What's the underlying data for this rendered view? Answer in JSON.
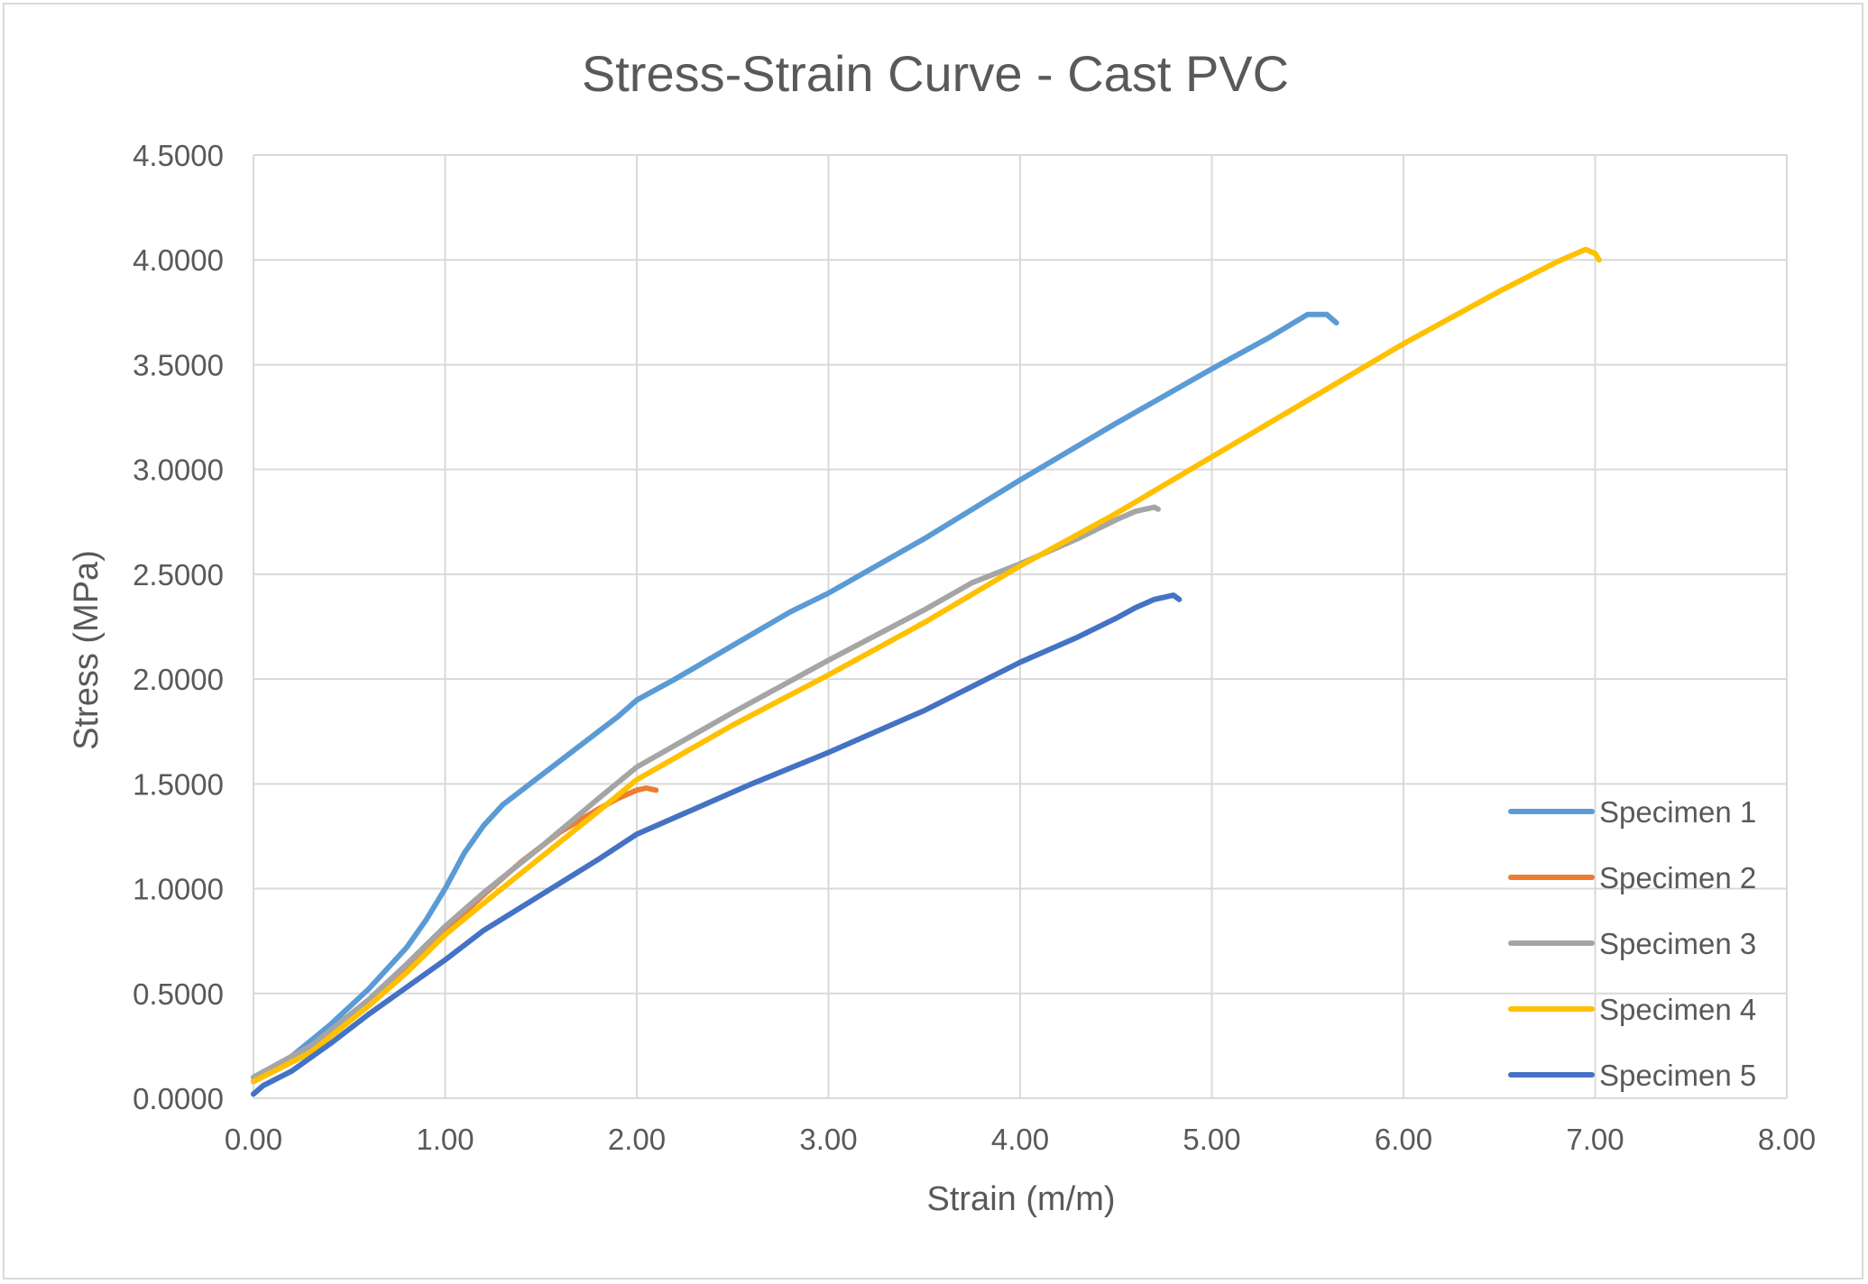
{
  "chart_data": {
    "type": "line",
    "title": "Stress-Strain Curve - Cast PVC",
    "xlabel": "Strain (m/m)",
    "ylabel": "Stress (MPa)",
    "xlim": [
      0,
      8
    ],
    "ylim": [
      0,
      4.5
    ],
    "x_ticks": [
      "0.00",
      "1.00",
      "2.00",
      "3.00",
      "4.00",
      "5.00",
      "6.00",
      "7.00",
      "8.00"
    ],
    "y_ticks": [
      "0.0000",
      "0.5000",
      "1.0000",
      "1.5000",
      "2.0000",
      "2.5000",
      "3.0000",
      "3.5000",
      "4.0000",
      "4.5000"
    ],
    "grid": true,
    "legend_position": "bottom-right",
    "series": [
      {
        "name": "Specimen 1",
        "color": "#5b9bd5",
        "points": [
          [
            0,
            0.1
          ],
          [
            0.2,
            0.2
          ],
          [
            0.4,
            0.35
          ],
          [
            0.6,
            0.52
          ],
          [
            0.8,
            0.72
          ],
          [
            0.9,
            0.85
          ],
          [
            1.0,
            1.0
          ],
          [
            1.1,
            1.17
          ],
          [
            1.2,
            1.3
          ],
          [
            1.3,
            1.4
          ],
          [
            1.5,
            1.54
          ],
          [
            1.7,
            1.68
          ],
          [
            1.9,
            1.82
          ],
          [
            2.0,
            1.9
          ],
          [
            2.2,
            2.0
          ],
          [
            2.5,
            2.16
          ],
          [
            2.8,
            2.32
          ],
          [
            3.0,
            2.41
          ],
          [
            3.5,
            2.67
          ],
          [
            4.0,
            2.95
          ],
          [
            4.5,
            3.22
          ],
          [
            5.0,
            3.48
          ],
          [
            5.3,
            3.63
          ],
          [
            5.5,
            3.74
          ],
          [
            5.6,
            3.74
          ],
          [
            5.65,
            3.7
          ]
        ]
      },
      {
        "name": "Specimen 2",
        "color": "#ed7d31",
        "points": [
          [
            0,
            0.08
          ],
          [
            0.3,
            0.22
          ],
          [
            0.6,
            0.45
          ],
          [
            0.8,
            0.63
          ],
          [
            1.0,
            0.8
          ],
          [
            1.2,
            0.97
          ],
          [
            1.4,
            1.13
          ],
          [
            1.6,
            1.27
          ],
          [
            1.8,
            1.38
          ],
          [
            1.9,
            1.43
          ],
          [
            2.0,
            1.47
          ],
          [
            2.05,
            1.48
          ],
          [
            2.1,
            1.47
          ]
        ]
      },
      {
        "name": "Specimen 3",
        "color": "#a5a5a5",
        "points": [
          [
            0,
            0.1
          ],
          [
            0.3,
            0.25
          ],
          [
            0.6,
            0.47
          ],
          [
            0.8,
            0.64
          ],
          [
            1.0,
            0.82
          ],
          [
            1.2,
            0.98
          ],
          [
            1.5,
            1.2
          ],
          [
            1.8,
            1.43
          ],
          [
            2.0,
            1.58
          ],
          [
            2.5,
            1.84
          ],
          [
            3.0,
            2.09
          ],
          [
            3.5,
            2.33
          ],
          [
            3.75,
            2.46
          ],
          [
            4.0,
            2.55
          ],
          [
            4.3,
            2.67
          ],
          [
            4.5,
            2.76
          ],
          [
            4.6,
            2.8
          ],
          [
            4.7,
            2.82
          ],
          [
            4.72,
            2.81
          ]
        ]
      },
      {
        "name": "Specimen 4",
        "color": "#ffc000",
        "points": [
          [
            0,
            0.08
          ],
          [
            0.3,
            0.22
          ],
          [
            0.6,
            0.44
          ],
          [
            0.8,
            0.6
          ],
          [
            1.0,
            0.78
          ],
          [
            1.2,
            0.93
          ],
          [
            1.5,
            1.15
          ],
          [
            1.8,
            1.37
          ],
          [
            2.0,
            1.52
          ],
          [
            2.5,
            1.78
          ],
          [
            3.0,
            2.02
          ],
          [
            3.5,
            2.27
          ],
          [
            4.0,
            2.54
          ],
          [
            4.5,
            2.79
          ],
          [
            5.0,
            3.06
          ],
          [
            5.5,
            3.33
          ],
          [
            6.0,
            3.6
          ],
          [
            6.5,
            3.85
          ],
          [
            6.8,
            3.99
          ],
          [
            6.95,
            4.05
          ],
          [
            7.0,
            4.03
          ],
          [
            7.02,
            4.0
          ]
        ]
      },
      {
        "name": "Specimen 5",
        "color": "#4472c4",
        "points": [
          [
            0,
            0.02
          ],
          [
            0.05,
            0.06
          ],
          [
            0.2,
            0.13
          ],
          [
            0.4,
            0.26
          ],
          [
            0.6,
            0.4
          ],
          [
            0.8,
            0.53
          ],
          [
            1.0,
            0.66
          ],
          [
            1.2,
            0.8
          ],
          [
            1.5,
            0.97
          ],
          [
            1.8,
            1.14
          ],
          [
            2.0,
            1.26
          ],
          [
            2.3,
            1.38
          ],
          [
            2.6,
            1.5
          ],
          [
            3.0,
            1.65
          ],
          [
            3.5,
            1.85
          ],
          [
            4.0,
            2.08
          ],
          [
            4.3,
            2.2
          ],
          [
            4.5,
            2.29
          ],
          [
            4.6,
            2.34
          ],
          [
            4.7,
            2.38
          ],
          [
            4.8,
            2.4
          ],
          [
            4.83,
            2.38
          ]
        ]
      }
    ]
  }
}
